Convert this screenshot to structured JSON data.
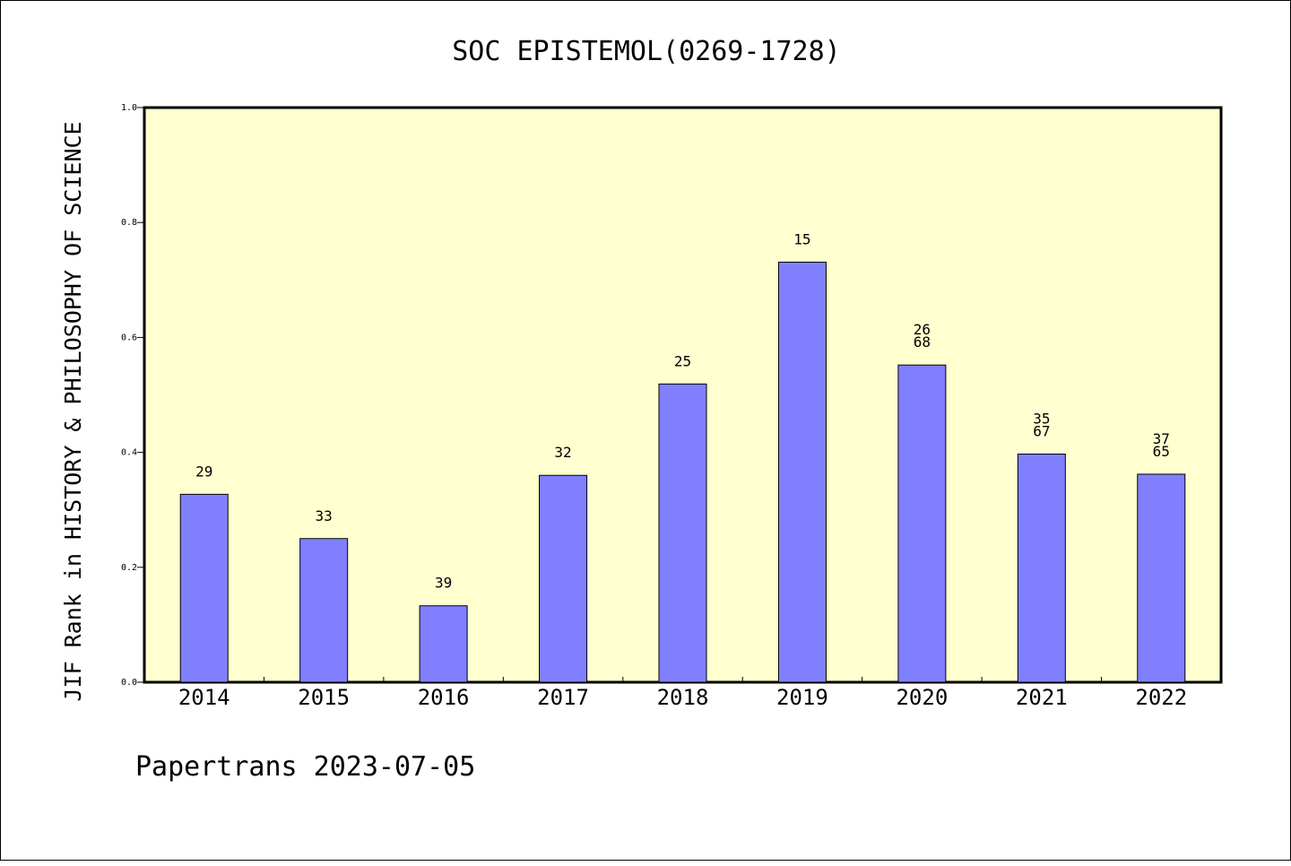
{
  "chart_data": {
    "type": "bar",
    "title": "SOC EPISTEMOL(0269-1728)",
    "xlabel": "",
    "ylabel": "JIF Rank in HISTORY & PHILOSOPHY OF SCIENCE",
    "ylim": [
      0,
      1.0
    ],
    "yticks": [
      "0.0",
      "0.2",
      "0.4",
      "0.6",
      "0.8",
      "1.0"
    ],
    "categories": [
      "2014",
      "2015",
      "2016",
      "2017",
      "2018",
      "2019",
      "2020",
      "2021",
      "2022"
    ],
    "values": [
      0.327,
      0.25,
      0.133,
      0.36,
      0.519,
      0.731,
      0.552,
      0.397,
      0.362
    ],
    "bar_labels": [
      [
        "29"
      ],
      [
        "33"
      ],
      [
        "39"
      ],
      [
        "32"
      ],
      [
        "25"
      ],
      [
        "15"
      ],
      [
        "26",
        "68"
      ],
      [
        "35",
        "67"
      ],
      [
        "37",
        "65"
      ]
    ],
    "bar_color": "#8080ff",
    "plot_background": "#ffffd0",
    "grid": false,
    "legend": "none"
  },
  "footer": "Papertrans 2023-07-05"
}
